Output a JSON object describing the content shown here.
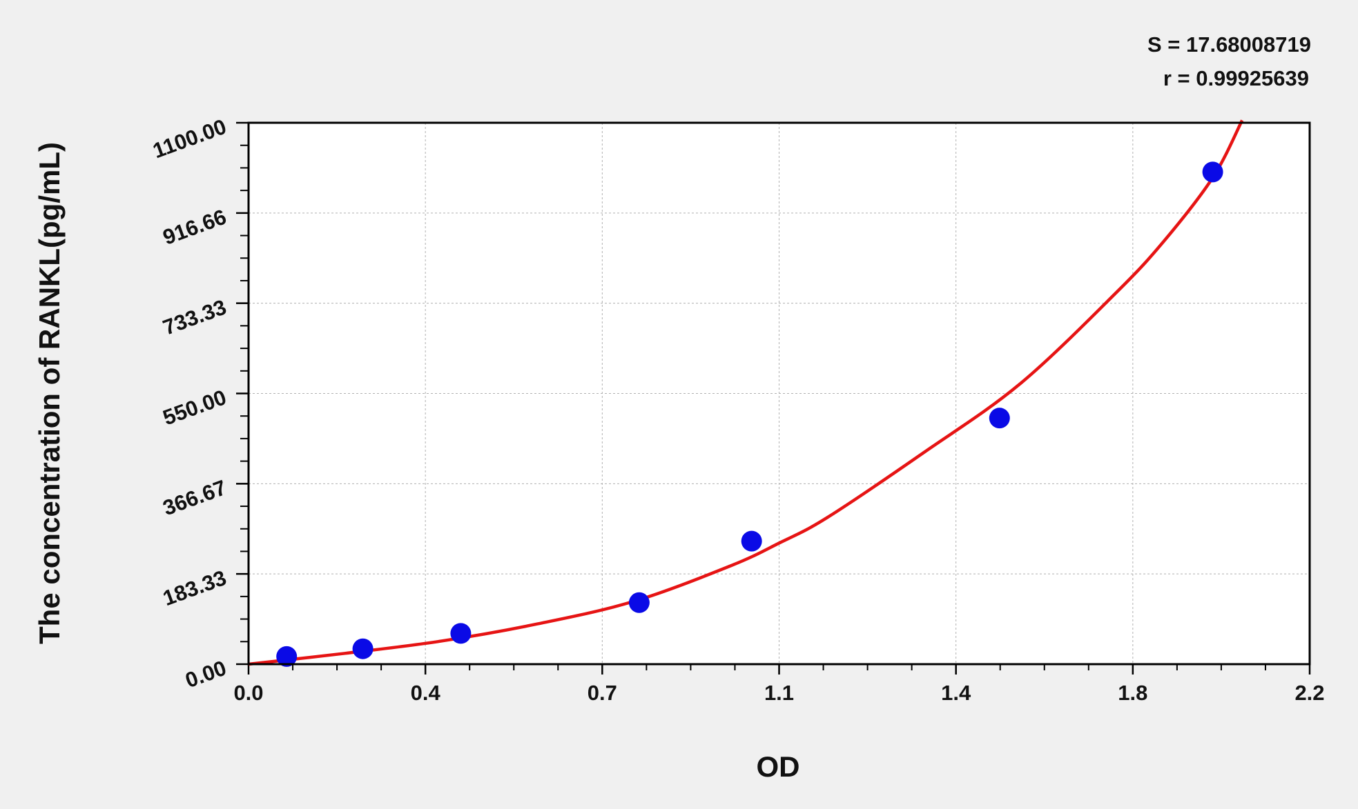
{
  "chart_data": {
    "type": "scatter",
    "title": "",
    "xlabel": "OD",
    "ylabel": "The concentration of RANKL(pg/mL)",
    "xlim": [
      0,
      2.2
    ],
    "ylim": [
      0,
      1100
    ],
    "x_ticks": [
      "0.0",
      "0.4",
      "0.7",
      "1.1",
      "1.4",
      "1.8",
      "2.2"
    ],
    "y_ticks": [
      "0.00",
      "183.33",
      "366.67",
      "550.00",
      "733.33",
      "916.66",
      "1100.00"
    ],
    "grid": true,
    "annotations": [
      "S = 17.68008719",
      "r = 0.99925639"
    ],
    "series": [
      {
        "kind": "points",
        "color": "#0a0ae6",
        "x": [
          0.079,
          0.237,
          0.44,
          0.81,
          1.043,
          1.557,
          1.999
        ],
        "y": [
          15.6,
          31.25,
          62.5,
          125,
          250,
          500,
          1000
        ]
      },
      {
        "kind": "fit-curve",
        "color": "#e61414",
        "x": [
          0,
          0.2,
          0.4,
          0.6,
          0.8,
          1.0,
          1.1,
          1.2,
          1.4,
          1.6,
          1.8,
          1.9,
          2.0,
          2.06
        ],
        "y": [
          0,
          22,
          47,
          82,
          128,
          200,
          246,
          298,
          430,
          570,
          756,
          862,
          990,
          1105
        ]
      }
    ]
  }
}
